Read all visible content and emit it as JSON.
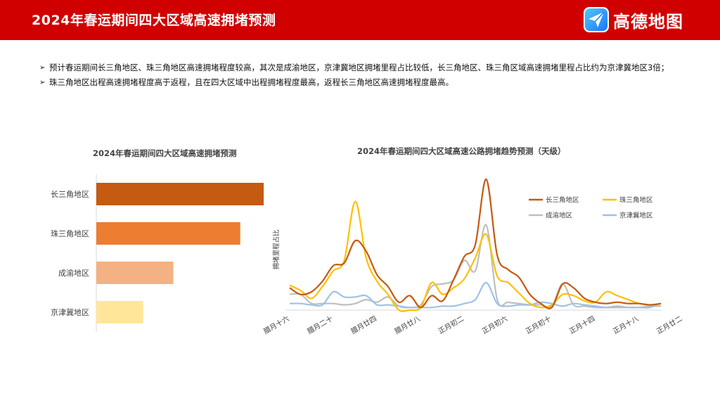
{
  "header": {
    "title": "2024年春运期间四大区域高速拥堵预测",
    "logo_text": "高德地图",
    "logo_icon": "paper-plane-icon",
    "bar_color": "#d10000"
  },
  "bullets": [
    "预计春运期间长三角地区、珠三角地区高速拥堵程度较高，其次是成渝地区，京津冀地区拥堵里程占比较低，长三角地区、珠三角区域高速拥堵里程占比约为京津冀地区3倍；",
    "珠三角地区出程高速拥堵程度高于返程，且在四大区域中出程拥堵程度最高，返程长三角地区高速拥堵程度最高。"
  ],
  "chart_data": [
    {
      "type": "bar",
      "orientation": "horizontal",
      "title": "2024年春运期间四大区域高速拥堵预测",
      "categories": [
        "长三角地区",
        "珠三角地区",
        "成渝地区",
        "京津冀地区"
      ],
      "values": [
        1.0,
        0.86,
        0.46,
        0.28
      ],
      "colors": [
        "#c55a11",
        "#ed7d31",
        "#f4b183",
        "#ffe699"
      ],
      "xlim": [
        0,
        1
      ],
      "note": "no value axis shown; values are relative lengths"
    },
    {
      "type": "line",
      "title": "2024年春运期间四大区域高速公路拥堵趋势预测（天级）",
      "ylabel": "拥堵里程占比",
      "xlabel": "",
      "x_tick_labels": [
        "腊月十六",
        "腊月二十",
        "腊月廿四",
        "腊月廿八",
        "正月初二",
        "正月初六",
        "正月初十",
        "正月十四",
        "正月十八",
        "正月廿二"
      ],
      "x_tick_index": [
        0,
        4,
        8,
        12,
        16,
        20,
        24,
        28,
        32,
        36
      ],
      "ylim": [
        0,
        1
      ],
      "legend_position": "top-right",
      "series": [
        {
          "name": "长三角地区",
          "color": "#c55a11",
          "values": [
            0.17,
            0.12,
            0.14,
            0.22,
            0.34,
            0.36,
            0.53,
            0.45,
            0.27,
            0.18,
            0.06,
            0.11,
            0.02,
            0.11,
            0.07,
            0.23,
            0.41,
            0.5,
            1.0,
            0.42,
            0.31,
            0.25,
            0.12,
            0.05,
            0.02,
            0.2,
            0.17,
            0.09,
            0.06,
            0.05,
            0.06,
            0.05,
            0.05,
            0.04,
            0.05
          ]
        },
        {
          "name": "珠三角地区",
          "color": "#ffc000",
          "values": [
            0.19,
            0.15,
            0.09,
            0.18,
            0.3,
            0.38,
            0.83,
            0.4,
            0.22,
            0.12,
            0.0,
            0.0,
            0.02,
            0.21,
            0.12,
            0.17,
            0.24,
            0.4,
            0.58,
            0.26,
            0.21,
            0.13,
            0.05,
            0.02,
            0.04,
            0.12,
            0.11,
            0.07,
            0.06,
            0.14,
            0.11,
            0.08,
            0.05,
            0.04,
            0.05
          ]
        },
        {
          "name": "成渝地区",
          "color": "#bfbfbf",
          "values": [
            0.12,
            0.12,
            0.05,
            0.05,
            0.05,
            0.04,
            0.05,
            0.08,
            0.06,
            0.1,
            0.03,
            0.02,
            0.04,
            0.18,
            0.2,
            0.23,
            0.38,
            0.3,
            0.65,
            0.08,
            0.06,
            0.05,
            0.04,
            0.04,
            0.03,
            0.2,
            0.04,
            0.03,
            0.02,
            0.02,
            0.03,
            0.02,
            0.02,
            0.03,
            0.03
          ]
        },
        {
          "name": "京津冀地区",
          "color": "#9dc3e6",
          "values": [
            0.05,
            0.05,
            0.04,
            0.04,
            0.14,
            0.1,
            0.1,
            0.11,
            0.04,
            0.04,
            0.03,
            0.02,
            0.02,
            0.02,
            0.03,
            0.03,
            0.05,
            0.08,
            0.21,
            0.05,
            0.03,
            0.04,
            0.04,
            0.06,
            0.05,
            0.03,
            0.05,
            0.04,
            0.03,
            0.02,
            0.02,
            0.02,
            0.02,
            0.02,
            0.05
          ]
        }
      ]
    }
  ]
}
